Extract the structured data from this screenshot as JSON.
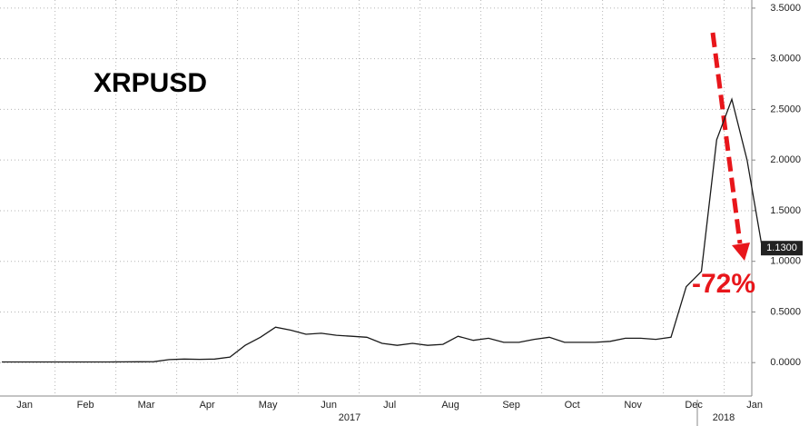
{
  "chart_data": {
    "type": "line",
    "title": "XRPUSD",
    "annotation": "-72%",
    "year_labels": [
      "2017",
      "2018"
    ],
    "categories": [
      "Jan",
      null,
      null,
      null,
      "Feb",
      null,
      null,
      null,
      "Mar",
      null,
      null,
      null,
      "Apr",
      null,
      null,
      null,
      "May",
      null,
      null,
      null,
      "Jun",
      null,
      null,
      null,
      "Jul",
      null,
      null,
      null,
      "Aug",
      null,
      null,
      null,
      "Sep",
      null,
      null,
      null,
      "Oct",
      null,
      null,
      null,
      "Nov",
      null,
      null,
      null,
      "Dec",
      null,
      null,
      null,
      "Jan",
      null,
      null
    ],
    "series": [
      {
        "name": "XRPUSD",
        "color": "#1a1a1a",
        "values": [
          0.0065,
          0.0065,
          0.0065,
          0.0065,
          0.0065,
          0.0063,
          0.0063,
          0.0065,
          0.007,
          0.008,
          0.009,
          0.03,
          0.035,
          0.032,
          0.035,
          0.055,
          0.17,
          0.25,
          0.35,
          0.32,
          0.28,
          0.29,
          0.27,
          0.26,
          0.25,
          0.19,
          0.17,
          0.19,
          0.17,
          0.18,
          0.26,
          0.22,
          0.24,
          0.2,
          0.2,
          0.23,
          0.25,
          0.2,
          0.2,
          0.2,
          0.21,
          0.24,
          0.24,
          0.23,
          0.25,
          0.75,
          0.9,
          2.2,
          2.6,
          2.0,
          1.13
        ],
        "value_labels": [
          null,
          null,
          null,
          null,
          null,
          null,
          null,
          null,
          null,
          null,
          null,
          null,
          null,
          null,
          null,
          null,
          null,
          null,
          null,
          null,
          null,
          null,
          null,
          null,
          null,
          null,
          null,
          null,
          null,
          null,
          null,
          null,
          null,
          null,
          null,
          null,
          null,
          null,
          null,
          null,
          null,
          null,
          null,
          null,
          null,
          null,
          null,
          null,
          null,
          null,
          "1.1300"
        ]
      }
    ],
    "ylim": [
      -0.33,
      3.58
    ],
    "yticks": [
      {
        "value": 0,
        "label": "0.0000"
      },
      {
        "value": 0.5,
        "label": "0.5000"
      },
      {
        "value": 1,
        "label": "1.0000"
      },
      {
        "value": 1.5,
        "label": "1.5000"
      },
      {
        "value": 2,
        "label": "2.0000"
      },
      {
        "value": 2.5,
        "label": "2.5000"
      },
      {
        "value": 3,
        "label": "3.0000"
      },
      {
        "value": 3.5,
        "label": "3.5000"
      }
    ],
    "grid": true
  }
}
